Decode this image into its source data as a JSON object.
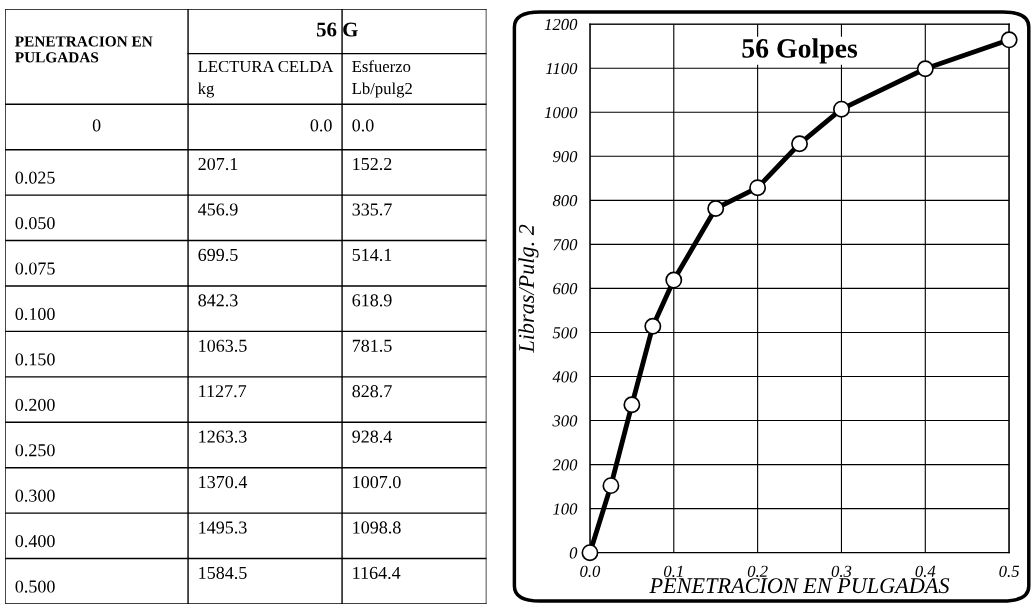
{
  "chart_data": [
    {
      "type": "other",
      "title": "56 G",
      "annotations": [
        "PENETRACION EN PULGADAS",
        "LECTURA CELDA kg",
        "Esfuerzo Lb/pulg2",
        "0",
        "0.0",
        "0.0",
        "0.025",
        "207.1",
        "152.2",
        "0.050",
        "456.9",
        "335.7",
        "0.075",
        "699.5",
        "514.1",
        "0.100",
        "842.3",
        "618.9",
        "0.150",
        "1063.5",
        "781.5",
        "0.200",
        "1127.7",
        "828.7",
        "0.250",
        "1263.3",
        "928.4",
        "0.300",
        "1370.4",
        "1007.0",
        "0.400",
        "1495.3",
        "1098.8",
        "0.500",
        "1584.5",
        "1164.4"
      ]
    },
    {
      "type": "line",
      "title": "56 Golpes",
      "xlabel": "PENETRACION EN PULGADAS",
      "ylabel": "Libras/Pulg. 2",
      "x": [
        0,
        0.025,
        0.05,
        0.075,
        0.1,
        0.15,
        0.2,
        0.25,
        0.3,
        0.4,
        0.5
      ],
      "series": [
        {
          "color": "#000000",
          "values": [
            0.0,
            152.2,
            335.7,
            514.1,
            618.9,
            781.5,
            828.7,
            928.4,
            1007.0,
            1098.8,
            1164.4
          ]
        }
      ],
      "xlim": [
        0,
        0.5
      ],
      "xticks": [
        {
          "value": 0,
          "label": "0.0"
        },
        0.1,
        0.2,
        0.3,
        0.4,
        0.5
      ],
      "ylim": [
        0,
        1200
      ],
      "yticks": [
        0,
        100,
        200,
        300,
        400,
        500,
        600,
        700,
        800,
        900,
        1000,
        1100,
        1200
      ],
      "grid": true,
      "marker": "circle",
      "line_style": "solid"
    }
  ]
}
